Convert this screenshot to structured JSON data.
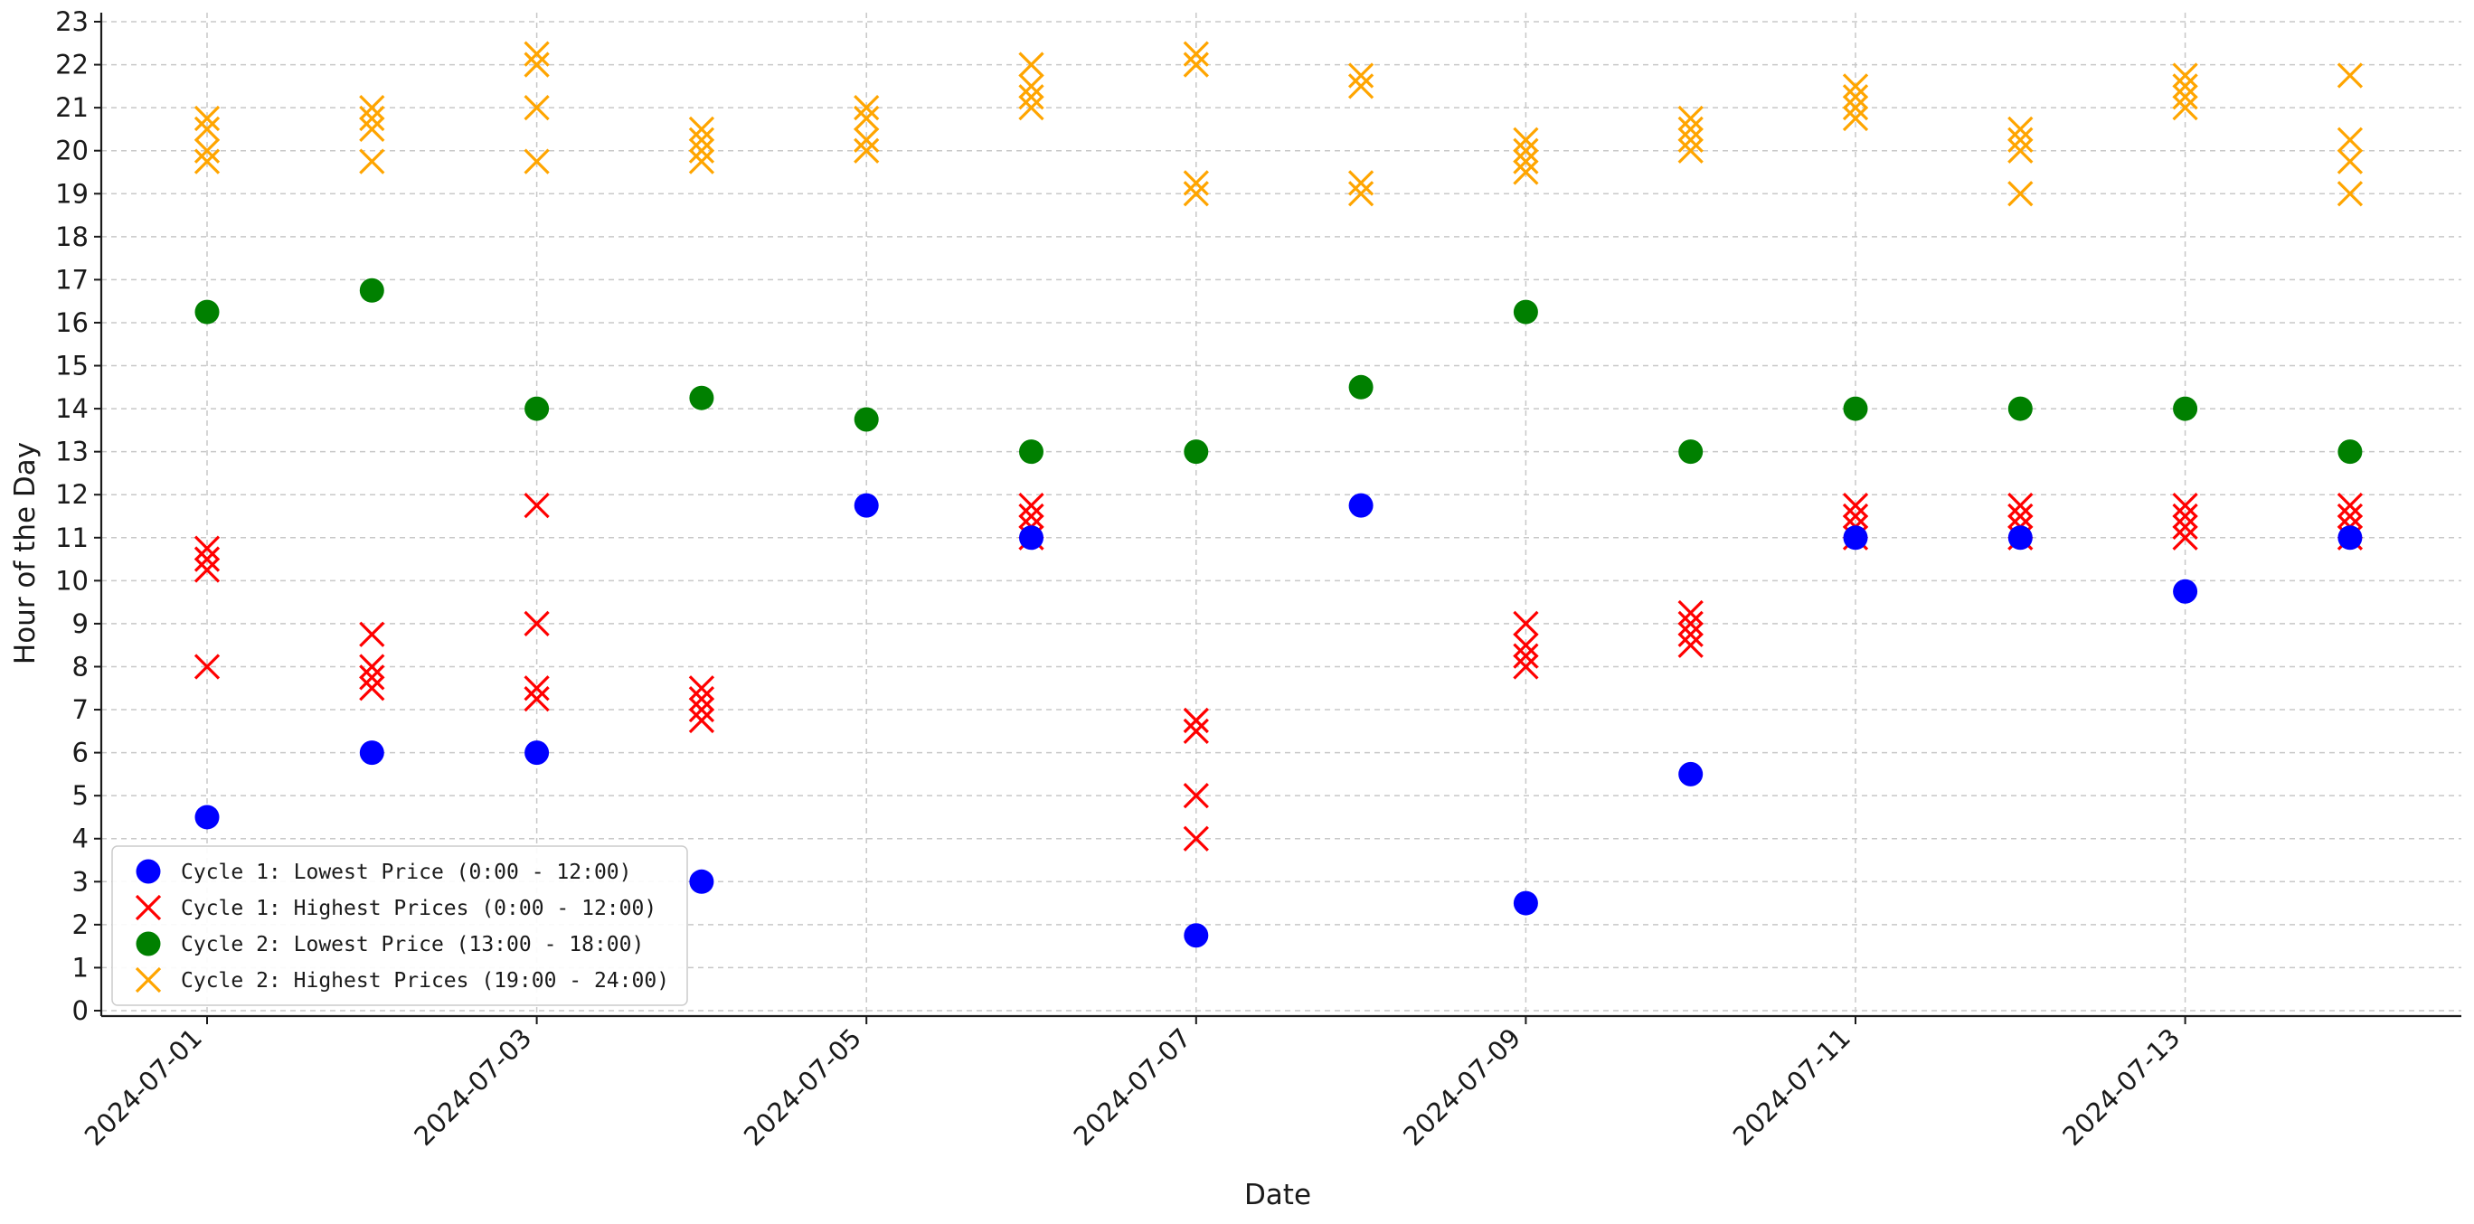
{
  "chart_data": {
    "type": "scatter",
    "title": "",
    "xlabel": "Date",
    "ylabel": "Hour of the Day",
    "ylim": [
      0,
      23
    ],
    "grid": true,
    "legend_position": "bottom-left",
    "dates": [
      "2024-07-01",
      "2024-07-02",
      "2024-07-03",
      "2024-07-04",
      "2024-07-05",
      "2024-07-06",
      "2024-07-07",
      "2024-07-08",
      "2024-07-09",
      "2024-07-10",
      "2024-07-11",
      "2024-07-12",
      "2024-07-13",
      "2024-07-14"
    ],
    "x_tick_labels": [
      "2024-07-01",
      "2024-07-03",
      "2024-07-05",
      "2024-07-07",
      "2024-07-09",
      "2024-07-11",
      "2024-07-13"
    ],
    "y_ticks": [
      0,
      1,
      2,
      3,
      4,
      5,
      6,
      7,
      8,
      9,
      10,
      11,
      12,
      13,
      14,
      15,
      16,
      17,
      18,
      19,
      20,
      21,
      22,
      23
    ],
    "series": [
      {
        "name": "Cycle 1: Lowest Price (0:00 - 12:00)",
        "marker": "circle",
        "color": "#0000ff",
        "points": [
          {
            "x": "2024-07-01",
            "y": 4.5
          },
          {
            "x": "2024-07-02",
            "y": 6
          },
          {
            "x": "2024-07-03",
            "y": 6
          },
          {
            "x": "2024-07-04",
            "y": 3
          },
          {
            "x": "2024-07-05",
            "y": 11.75
          },
          {
            "x": "2024-07-06",
            "y": 11
          },
          {
            "x": "2024-07-07",
            "y": 1.75
          },
          {
            "x": "2024-07-08",
            "y": 11.75
          },
          {
            "x": "2024-07-09",
            "y": 2.5
          },
          {
            "x": "2024-07-10",
            "y": 5.5
          },
          {
            "x": "2024-07-11",
            "y": 11
          },
          {
            "x": "2024-07-12",
            "y": 11
          },
          {
            "x": "2024-07-13",
            "y": 9.75
          },
          {
            "x": "2024-07-14",
            "y": 11
          }
        ]
      },
      {
        "name": "Cycle 1: Highest Prices (0:00 - 12:00)",
        "marker": "x",
        "color": "#ff0000",
        "points": [
          {
            "x": "2024-07-01",
            "y": 10.75
          },
          {
            "x": "2024-07-01",
            "y": 10.5
          },
          {
            "x": "2024-07-01",
            "y": 10.25
          },
          {
            "x": "2024-07-01",
            "y": 8
          },
          {
            "x": "2024-07-02",
            "y": 8.75
          },
          {
            "x": "2024-07-02",
            "y": 8
          },
          {
            "x": "2024-07-02",
            "y": 7.75
          },
          {
            "x": "2024-07-02",
            "y": 7.5
          },
          {
            "x": "2024-07-03",
            "y": 11.75
          },
          {
            "x": "2024-07-03",
            "y": 9
          },
          {
            "x": "2024-07-03",
            "y": 7.5
          },
          {
            "x": "2024-07-03",
            "y": 7.25
          },
          {
            "x": "2024-07-04",
            "y": 7.5
          },
          {
            "x": "2024-07-04",
            "y": 7.25
          },
          {
            "x": "2024-07-04",
            "y": 7
          },
          {
            "x": "2024-07-04",
            "y": 6.75
          },
          {
            "x": "2024-07-06",
            "y": 11.75
          },
          {
            "x": "2024-07-06",
            "y": 11.5
          },
          {
            "x": "2024-07-06",
            "y": 11.25
          },
          {
            "x": "2024-07-06",
            "y": 11
          },
          {
            "x": "2024-07-07",
            "y": 6.75
          },
          {
            "x": "2024-07-07",
            "y": 6.5
          },
          {
            "x": "2024-07-07",
            "y": 5
          },
          {
            "x": "2024-07-07",
            "y": 4
          },
          {
            "x": "2024-07-09",
            "y": 9
          },
          {
            "x": "2024-07-09",
            "y": 8.5
          },
          {
            "x": "2024-07-09",
            "y": 8.25
          },
          {
            "x": "2024-07-09",
            "y": 8
          },
          {
            "x": "2024-07-10",
            "y": 9.25
          },
          {
            "x": "2024-07-10",
            "y": 9
          },
          {
            "x": "2024-07-10",
            "y": 8.75
          },
          {
            "x": "2024-07-10",
            "y": 8.5
          },
          {
            "x": "2024-07-11",
            "y": 11.75
          },
          {
            "x": "2024-07-11",
            "y": 11.5
          },
          {
            "x": "2024-07-11",
            "y": 11.25
          },
          {
            "x": "2024-07-11",
            "y": 11
          },
          {
            "x": "2024-07-12",
            "y": 11.75
          },
          {
            "x": "2024-07-12",
            "y": 11.5
          },
          {
            "x": "2024-07-12",
            "y": 11.25
          },
          {
            "x": "2024-07-12",
            "y": 11
          },
          {
            "x": "2024-07-13",
            "y": 11.75
          },
          {
            "x": "2024-07-13",
            "y": 11.5
          },
          {
            "x": "2024-07-13",
            "y": 11.25
          },
          {
            "x": "2024-07-13",
            "y": 11
          },
          {
            "x": "2024-07-14",
            "y": 11.75
          },
          {
            "x": "2024-07-14",
            "y": 11.5
          },
          {
            "x": "2024-07-14",
            "y": 11.25
          },
          {
            "x": "2024-07-14",
            "y": 11
          }
        ]
      },
      {
        "name": "Cycle 2: Lowest Price (13:00 - 18:00)",
        "marker": "circle",
        "color": "#008000",
        "points": [
          {
            "x": "2024-07-01",
            "y": 16.25
          },
          {
            "x": "2024-07-02",
            "y": 16.75
          },
          {
            "x": "2024-07-03",
            "y": 14
          },
          {
            "x": "2024-07-04",
            "y": 14.25
          },
          {
            "x": "2024-07-05",
            "y": 13.75
          },
          {
            "x": "2024-07-06",
            "y": 13
          },
          {
            "x": "2024-07-07",
            "y": 13
          },
          {
            "x": "2024-07-08",
            "y": 14.5
          },
          {
            "x": "2024-07-09",
            "y": 16.25
          },
          {
            "x": "2024-07-10",
            "y": 13
          },
          {
            "x": "2024-07-11",
            "y": 14
          },
          {
            "x": "2024-07-12",
            "y": 14
          },
          {
            "x": "2024-07-13",
            "y": 14
          },
          {
            "x": "2024-07-14",
            "y": 13
          }
        ]
      },
      {
        "name": "Cycle 2: Highest Prices (19:00 - 24:00)",
        "marker": "x",
        "color": "#ffa500",
        "points": [
          {
            "x": "2024-07-01",
            "y": 20.75
          },
          {
            "x": "2024-07-01",
            "y": 20.5
          },
          {
            "x": "2024-07-01",
            "y": 20
          },
          {
            "x": "2024-07-01",
            "y": 19.75
          },
          {
            "x": "2024-07-02",
            "y": 21
          },
          {
            "x": "2024-07-02",
            "y": 20.75
          },
          {
            "x": "2024-07-02",
            "y": 20.5
          },
          {
            "x": "2024-07-02",
            "y": 19.75
          },
          {
            "x": "2024-07-03",
            "y": 22.25
          },
          {
            "x": "2024-07-03",
            "y": 22
          },
          {
            "x": "2024-07-03",
            "y": 21
          },
          {
            "x": "2024-07-03",
            "y": 19.75
          },
          {
            "x": "2024-07-04",
            "y": 20.5
          },
          {
            "x": "2024-07-04",
            "y": 20.25
          },
          {
            "x": "2024-07-04",
            "y": 20
          },
          {
            "x": "2024-07-04",
            "y": 19.75
          },
          {
            "x": "2024-07-05",
            "y": 21
          },
          {
            "x": "2024-07-05",
            "y": 20.75
          },
          {
            "x": "2024-07-05",
            "y": 20.25
          },
          {
            "x": "2024-07-05",
            "y": 20
          },
          {
            "x": "2024-07-06",
            "y": 22
          },
          {
            "x": "2024-07-06",
            "y": 21.5
          },
          {
            "x": "2024-07-06",
            "y": 21.25
          },
          {
            "x": "2024-07-06",
            "y": 21
          },
          {
            "x": "2024-07-07",
            "y": 22.25
          },
          {
            "x": "2024-07-07",
            "y": 22
          },
          {
            "x": "2024-07-07",
            "y": 19.25
          },
          {
            "x": "2024-07-07",
            "y": 19
          },
          {
            "x": "2024-07-08",
            "y": 21.75
          },
          {
            "x": "2024-07-08",
            "y": 21.5
          },
          {
            "x": "2024-07-08",
            "y": 19.25
          },
          {
            "x": "2024-07-08",
            "y": 19
          },
          {
            "x": "2024-07-09",
            "y": 20.25
          },
          {
            "x": "2024-07-09",
            "y": 20
          },
          {
            "x": "2024-07-09",
            "y": 19.75
          },
          {
            "x": "2024-07-09",
            "y": 19.5
          },
          {
            "x": "2024-07-10",
            "y": 20.75
          },
          {
            "x": "2024-07-10",
            "y": 20.5
          },
          {
            "x": "2024-07-10",
            "y": 20.25
          },
          {
            "x": "2024-07-10",
            "y": 20
          },
          {
            "x": "2024-07-11",
            "y": 21.5
          },
          {
            "x": "2024-07-11",
            "y": 21.25
          },
          {
            "x": "2024-07-11",
            "y": 21
          },
          {
            "x": "2024-07-11",
            "y": 20.75
          },
          {
            "x": "2024-07-12",
            "y": 20.5
          },
          {
            "x": "2024-07-12",
            "y": 20.25
          },
          {
            "x": "2024-07-12",
            "y": 20
          },
          {
            "x": "2024-07-12",
            "y": 19
          },
          {
            "x": "2024-07-13",
            "y": 21.75
          },
          {
            "x": "2024-07-13",
            "y": 21.5
          },
          {
            "x": "2024-07-13",
            "y": 21.25
          },
          {
            "x": "2024-07-13",
            "y": 21
          },
          {
            "x": "2024-07-14",
            "y": 21.75
          },
          {
            "x": "2024-07-14",
            "y": 20.25
          },
          {
            "x": "2024-07-14",
            "y": 19.75
          },
          {
            "x": "2024-07-14",
            "y": 19
          }
        ]
      }
    ]
  }
}
